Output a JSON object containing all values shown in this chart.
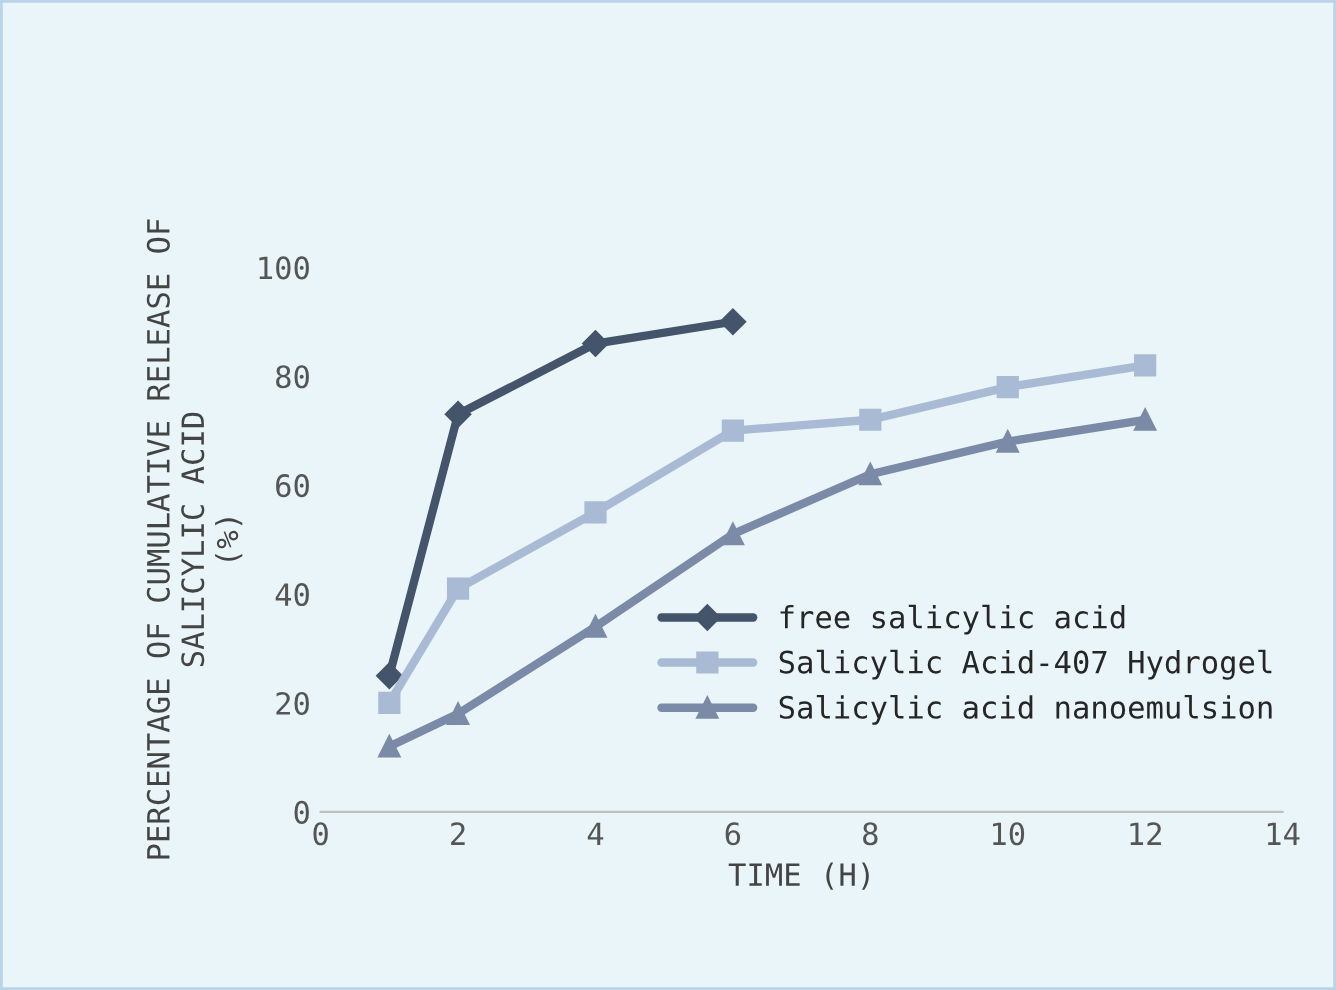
{
  "chart_data": {
    "type": "line",
    "xlabel": "TIME (H)",
    "ylabel": "PERCENTAGE OF CUMULATIVE RELEASE OF\nSALICYLIC ACID\n(%)",
    "xlim": [
      0,
      14
    ],
    "xticks": [
      0,
      2,
      4,
      6,
      8,
      10,
      12,
      14
    ],
    "ylim": [
      0,
      100
    ],
    "yticks": [
      0,
      20,
      40,
      60,
      80,
      100
    ],
    "grid": false,
    "legend": "right",
    "line_style": "solid",
    "series": [
      {
        "name": "free salicylic acid",
        "color": "#44546a",
        "marker": "diamond",
        "x": [
          1,
          2,
          4,
          6
        ],
        "values": [
          25,
          73,
          86,
          90
        ]
      },
      {
        "name": "Salicylic Acid-407 Hydrogel",
        "color": "#a9bad4",
        "marker": "square",
        "x": [
          1,
          2,
          4,
          6,
          8,
          10,
          12
        ],
        "values": [
          20,
          41,
          55,
          70,
          72,
          78,
          82
        ]
      },
      {
        "name": "Salicylic acid nanoemulsion",
        "color": "#7b8aa6",
        "marker": "triangle",
        "x": [
          1,
          2,
          4,
          6,
          8,
          10,
          12
        ],
        "values": [
          12,
          18,
          34,
          51,
          62,
          68,
          72
        ]
      }
    ]
  }
}
